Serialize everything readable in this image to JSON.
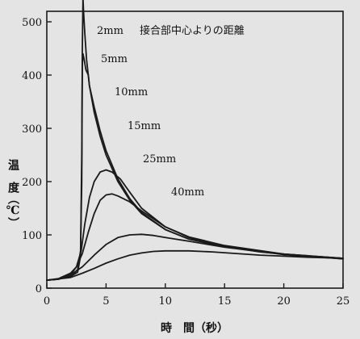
{
  "chart_data": {
    "type": "line",
    "title": "接合部中心よりの距離",
    "xlabel": "時　間（秒）",
    "ylabel": "温　度（℃）",
    "xlim": [
      0,
      25
    ],
    "ylim": [
      0,
      550
    ],
    "xticks": [
      0,
      5,
      10,
      15,
      20,
      25
    ],
    "yticks": [
      0,
      100,
      200,
      300,
      400,
      500
    ],
    "grid": false,
    "series": [
      {
        "name": "2mm",
        "points": [
          [
            0,
            15
          ],
          [
            1,
            17
          ],
          [
            2,
            22
          ],
          [
            2.6,
            30
          ],
          [
            2.85,
            60
          ],
          [
            2.95,
            250
          ],
          [
            3.0,
            450
          ],
          [
            3.05,
            545
          ],
          [
            3.1,
            520
          ],
          [
            3.2,
            480
          ],
          [
            3.35,
            430
          ],
          [
            3.6,
            380
          ],
          [
            4,
            330
          ],
          [
            4.5,
            285
          ],
          [
            5,
            250
          ],
          [
            6,
            200
          ],
          [
            7,
            165
          ],
          [
            8,
            140
          ],
          [
            10,
            110
          ],
          [
            12,
            92
          ],
          [
            15,
            78
          ],
          [
            18,
            68
          ],
          [
            20,
            64
          ],
          [
            25,
            55
          ]
        ]
      },
      {
        "name": "5mm",
        "points": [
          [
            0,
            15
          ],
          [
            1,
            17
          ],
          [
            2,
            22
          ],
          [
            2.6,
            35
          ],
          [
            2.85,
            70
          ],
          [
            2.95,
            200
          ],
          [
            3.0,
            420
          ],
          [
            3.05,
            440
          ],
          [
            3.15,
            430
          ],
          [
            3.3,
            410
          ],
          [
            3.5,
            400
          ],
          [
            3.6,
            380
          ],
          [
            4,
            340
          ],
          [
            4.5,
            295
          ],
          [
            5,
            258
          ],
          [
            6,
            205
          ],
          [
            7,
            168
          ],
          [
            8,
            142
          ],
          [
            10,
            110
          ],
          [
            12,
            92
          ],
          [
            15,
            78
          ],
          [
            20,
            63
          ],
          [
            25,
            55
          ]
        ]
      },
      {
        "name": "10mm",
        "points": [
          [
            0,
            15
          ],
          [
            1,
            17
          ],
          [
            2,
            25
          ],
          [
            2.5,
            40
          ],
          [
            2.9,
            70
          ],
          [
            3.2,
            120
          ],
          [
            3.6,
            170
          ],
          [
            4.0,
            200
          ],
          [
            4.5,
            218
          ],
          [
            5.0,
            222
          ],
          [
            5.5,
            218
          ],
          [
            6.2,
            205
          ],
          [
            7,
            180
          ],
          [
            8,
            150
          ],
          [
            10,
            115
          ],
          [
            12,
            95
          ],
          [
            15,
            78
          ],
          [
            20,
            64
          ],
          [
            25,
            56
          ]
        ]
      },
      {
        "name": "15mm",
        "points": [
          [
            0,
            15
          ],
          [
            1,
            18
          ],
          [
            2,
            28
          ],
          [
            2.5,
            40
          ],
          [
            3,
            65
          ],
          [
            3.5,
            105
          ],
          [
            4,
            140
          ],
          [
            4.5,
            165
          ],
          [
            5,
            175
          ],
          [
            5.5,
            177
          ],
          [
            6,
            173
          ],
          [
            7,
            162
          ],
          [
            8,
            145
          ],
          [
            10,
            115
          ],
          [
            12,
            96
          ],
          [
            15,
            80
          ],
          [
            20,
            64
          ],
          [
            25,
            56
          ]
        ]
      },
      {
        "name": "25mm",
        "points": [
          [
            0,
            15
          ],
          [
            1,
            17
          ],
          [
            2,
            25
          ],
          [
            3,
            40
          ],
          [
            4,
            62
          ],
          [
            5,
            82
          ],
          [
            6,
            95
          ],
          [
            7,
            100
          ],
          [
            8,
            101
          ],
          [
            9,
            99
          ],
          [
            10,
            95
          ],
          [
            12,
            88
          ],
          [
            15,
            77
          ],
          [
            20,
            63
          ],
          [
            25,
            56
          ]
        ]
      },
      {
        "name": "40mm",
        "points": [
          [
            0,
            15
          ],
          [
            2,
            20
          ],
          [
            3,
            28
          ],
          [
            4,
            37
          ],
          [
            5,
            47
          ],
          [
            6,
            55
          ],
          [
            7,
            62
          ],
          [
            8,
            66
          ],
          [
            9,
            69
          ],
          [
            10,
            70
          ],
          [
            11,
            70
          ],
          [
            12,
            70
          ],
          [
            14,
            68
          ],
          [
            16,
            65
          ],
          [
            18,
            62
          ],
          [
            20,
            60
          ],
          [
            22,
            58
          ],
          [
            25,
            56
          ]
        ]
      }
    ]
  }
}
